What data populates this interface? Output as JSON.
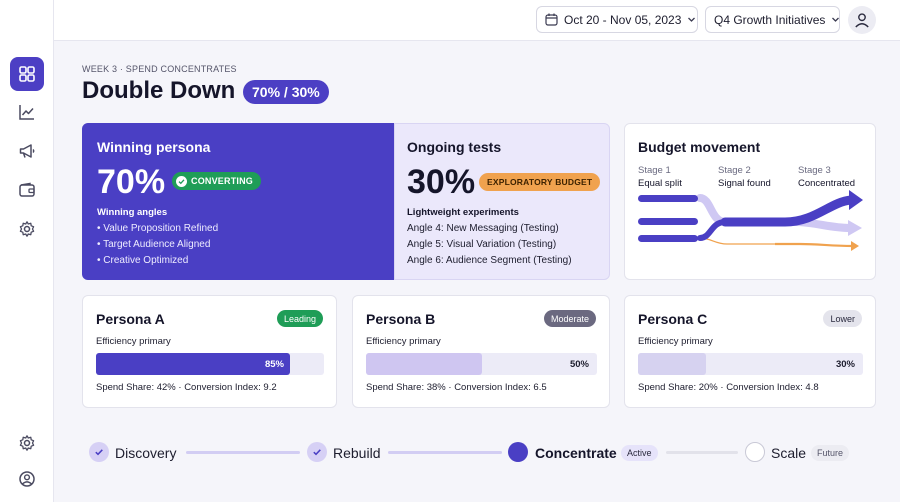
{
  "topbar": {
    "date_range": "Oct 20 - Nov 05, 2023",
    "initiative": "Q4 Growth Initiatives"
  },
  "sidebar": {
    "items": [
      "dashboard-icon",
      "analytics-icon",
      "megaphone-icon",
      "wallet-icon",
      "settings-icon"
    ],
    "bottom": [
      "settings-icon",
      "user-icon"
    ]
  },
  "header": {
    "eyebrow": "WEEK 3 · SPEND CONCENTRATES",
    "title": "Double Down",
    "split": "70% / 30%"
  },
  "winning": {
    "title": "Winning persona",
    "value": "70%",
    "badge": "CONVERTING",
    "subtitle": "Winning angles",
    "items": [
      "• Value Proposition Refined",
      "• Target Audience Aligned",
      "• Creative Optimized"
    ]
  },
  "tests": {
    "title": "Ongoing tests",
    "value": "30%",
    "badge": "EXPLORATORY BUDGET",
    "subtitle": "Lightweight experiments",
    "items": [
      "Angle 4: New Messaging (Testing)",
      "Angle 5: Visual Variation (Testing)",
      "Angle 6: Audience Segment (Testing)"
    ]
  },
  "budget": {
    "title": "Budget movement",
    "stages": [
      {
        "name": "Stage 1",
        "desc": "Equal split"
      },
      {
        "name": "Stage 2",
        "desc": "Signal found"
      },
      {
        "name": "Stage 3",
        "desc": "Concentrated"
      }
    ],
    "colors": {
      "primary": "#4a3fc4",
      "light": "#cfc8f3",
      "orange": "#f0a24e"
    }
  },
  "personas": [
    {
      "name": "Persona A",
      "tag": "Leading",
      "label": "Efficiency primary",
      "value": "85%",
      "fill": 0.85,
      "footer": "Spend Share: 42% · Conversion Index: 9.2"
    },
    {
      "name": "Persona B",
      "tag": "Moderate",
      "label": "Efficiency primary",
      "value": "50%",
      "fill": 0.5,
      "footer": "Spend Share: 38% · Conversion Index: 6.5"
    },
    {
      "name": "Persona C",
      "tag": "Lower",
      "label": "Efficiency primary",
      "value": "30%",
      "fill": 0.3,
      "footer": "Spend Share: 20% · Conversion Index: 4.8"
    }
  ],
  "timeline": {
    "steps": [
      {
        "label": "Discovery",
        "state": "done"
      },
      {
        "label": "Rebuild",
        "state": "done"
      },
      {
        "label": "Concentrate",
        "state": "active",
        "tag": "Active"
      },
      {
        "label": "Scale",
        "state": "future",
        "tag": "Future"
      }
    ]
  }
}
